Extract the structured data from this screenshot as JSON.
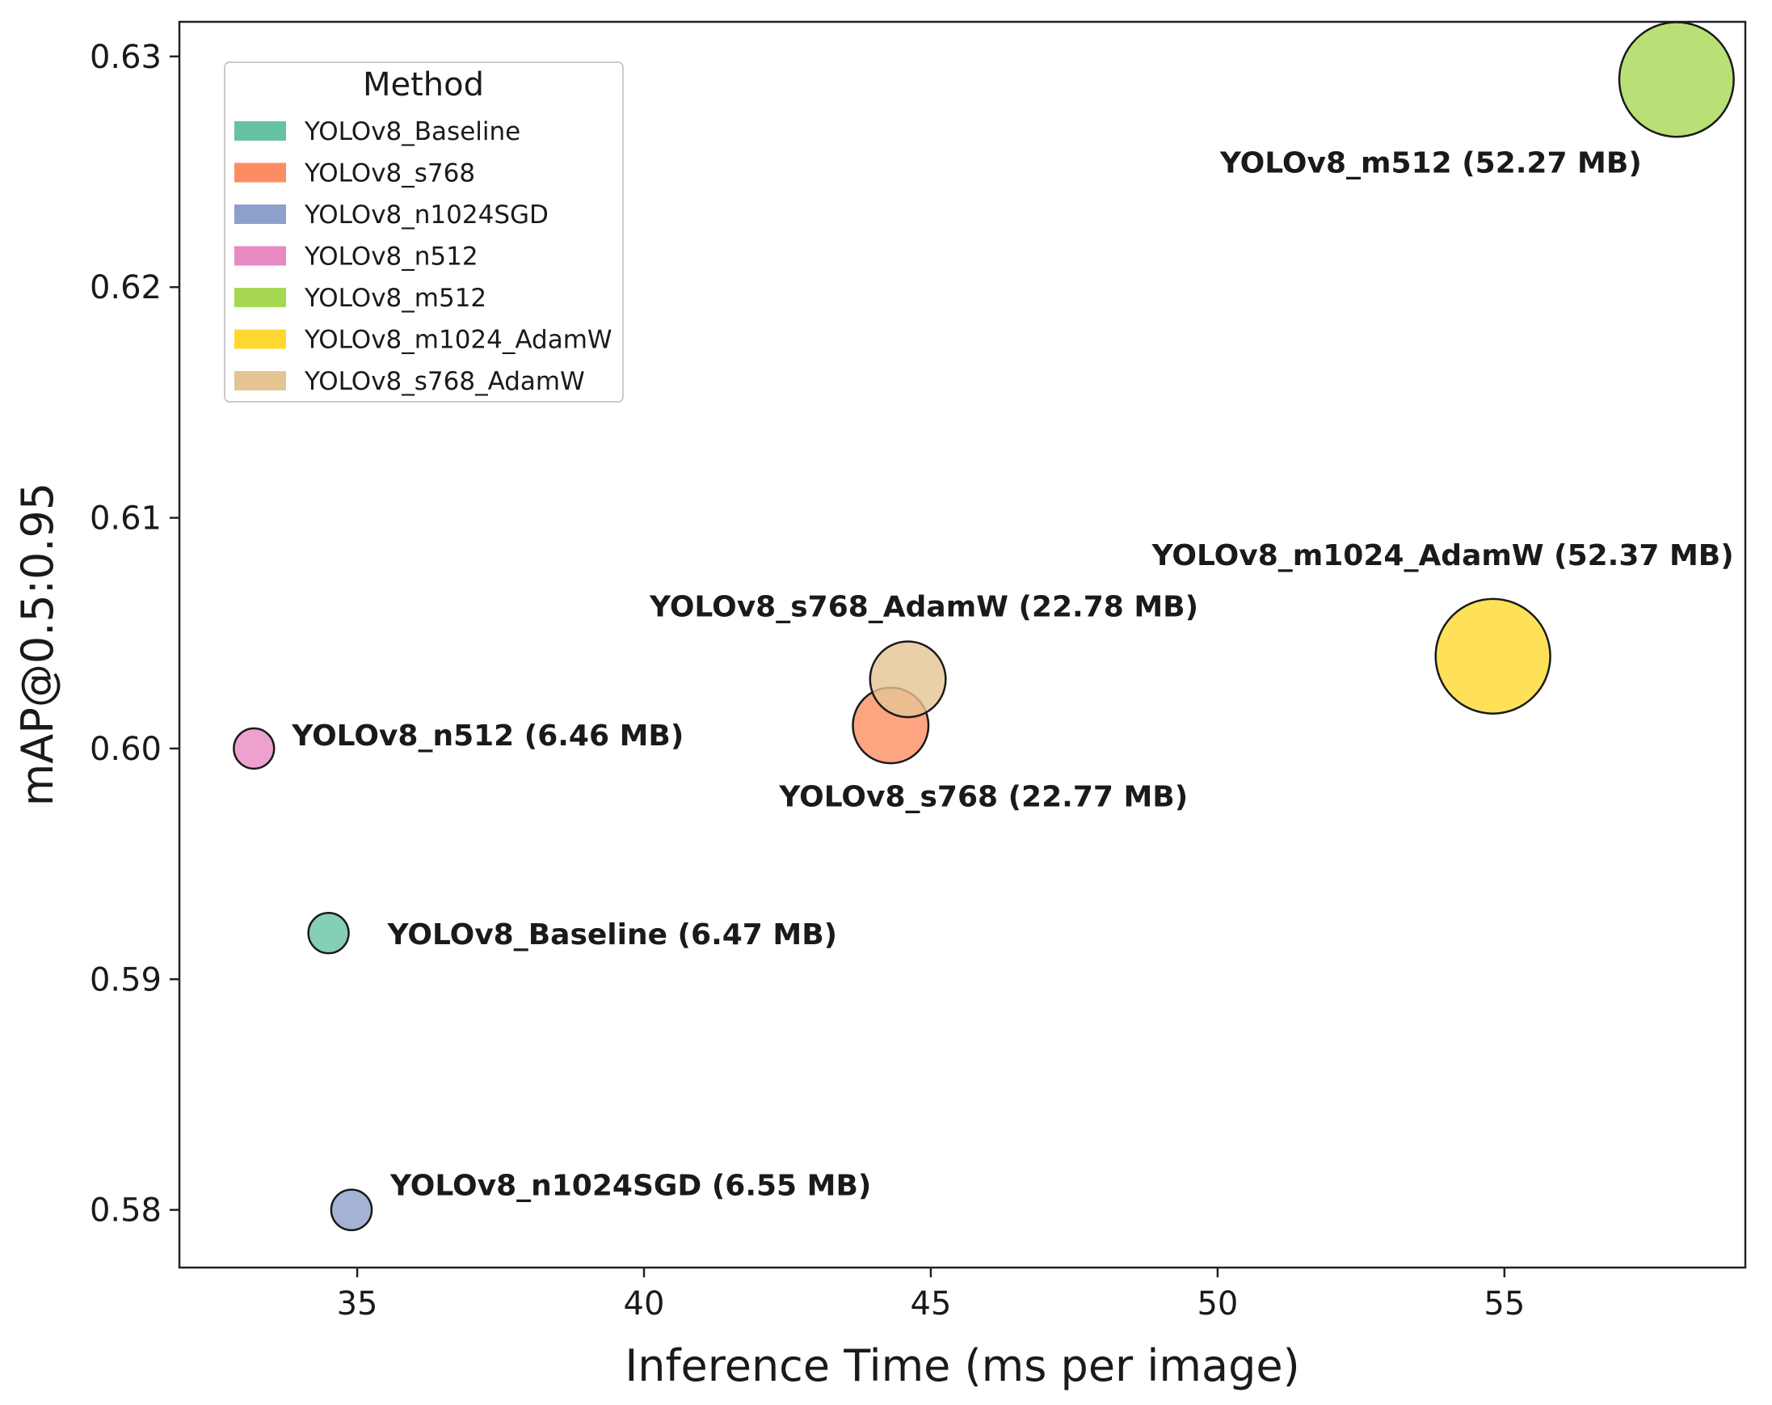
{
  "chart_data": {
    "type": "scatter",
    "title": "",
    "xlabel": "Inference Time (ms per image)",
    "ylabel": "mAP@0.5:0.95",
    "xlim": [
      31.9,
      59.2
    ],
    "ylim": [
      0.5775,
      0.6315
    ],
    "xticks": [
      35,
      40,
      45,
      50,
      55
    ],
    "xtick_labels": [
      "35",
      "40",
      "45",
      "50",
      "55"
    ],
    "yticks": [
      0.58,
      0.59,
      0.6,
      0.61,
      0.62,
      0.63
    ],
    "ytick_labels": [
      "0.58",
      "0.59",
      "0.60",
      "0.61",
      "0.62",
      "0.63"
    ],
    "grid": false,
    "size_encoding": "model size (MB)",
    "legend": {
      "title": "Method",
      "location": "upper left",
      "entries": [
        "YOLOv8_Baseline",
        "YOLOv8_s768",
        "YOLOv8_n1024SGD",
        "YOLOv8_n512",
        "YOLOv8_m512",
        "YOLOv8_m1024_AdamW",
        "YOLOv8_s768_AdamW"
      ]
    },
    "series": [
      {
        "name": "YOLOv8_Baseline",
        "x": 34.5,
        "y": 0.592,
        "size_mb": 6.47,
        "color": "#66c2a5",
        "label": "YOLOv8_Baseline (6.47 MB)"
      },
      {
        "name": "YOLOv8_s768",
        "x": 44.3,
        "y": 0.601,
        "size_mb": 22.77,
        "color": "#fc8d62",
        "label": "YOLOv8_s768 (22.77 MB)"
      },
      {
        "name": "YOLOv8_n1024SGD",
        "x": 34.9,
        "y": 0.58,
        "size_mb": 6.55,
        "color": "#8da0cb",
        "label": "YOLOv8_n1024SGD (6.55 MB)"
      },
      {
        "name": "YOLOv8_n512",
        "x": 33.2,
        "y": 0.6,
        "size_mb": 6.46,
        "color": "#e78ac3",
        "label": "YOLOv8_n512 (6.46 MB)"
      },
      {
        "name": "YOLOv8_m512",
        "x": 58.0,
        "y": 0.629,
        "size_mb": 52.27,
        "color": "#a6d854",
        "label": "YOLOv8_m512 (52.27 MB)"
      },
      {
        "name": "YOLOv8_m1024_AdamW",
        "x": 54.8,
        "y": 0.604,
        "size_mb": 52.37,
        "color": "#ffd92f",
        "label": "YOLOv8_m1024_AdamW (52.37 MB)"
      },
      {
        "name": "YOLOv8_s768_AdamW",
        "x": 44.6,
        "y": 0.603,
        "size_mb": 22.78,
        "color": "#e5c494",
        "label": "YOLOv8_s768_AdamW (22.78 MB)"
      }
    ]
  }
}
